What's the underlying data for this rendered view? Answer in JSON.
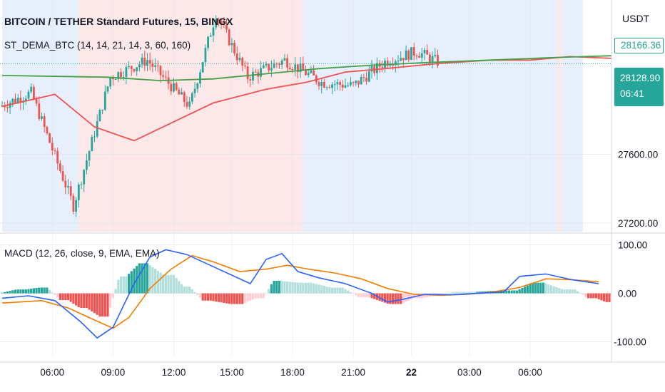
{
  "header": {
    "title": "BITCOIN / TETHER Standard Futures, 15, BINGX",
    "indicator": "ST_DEMA_BTC (14, 14, 21, 14, 3, 60, 160)",
    "macd_label": "MACD (12, 26, close, 9, EMA, EMA)"
  },
  "price_scale": {
    "currency": "USDT",
    "tick_labels": [
      "27600.00",
      "27200.00"
    ],
    "tick_values": [
      27600,
      27200
    ],
    "badge_green_value": "28166.36",
    "badge_price": "28128.90",
    "badge_countdown": "06:41"
  },
  "macd_scale": {
    "tick_labels": [
      "100.00",
      "0.00",
      "-100.00"
    ],
    "tick_values": [
      100,
      0,
      -100
    ]
  },
  "time_axis": {
    "labels": [
      "06:00",
      "09:00",
      "12:00",
      "15:00",
      "18:00",
      "21:00",
      "22",
      "03:00",
      "06:00"
    ],
    "bold_index": 6
  },
  "colors": {
    "up": "#26a69a",
    "down": "#ef5350",
    "background_blue": "#e7effd",
    "background_pink": "#fde8e9",
    "dema_fast": "#ef5350",
    "dema_slow": "#43a047",
    "macd_line": "#2962ff",
    "signal_line": "#f57c00",
    "hist_up_strong": "#26a69a",
    "hist_up_weak": "#b2dfdb",
    "hist_down_strong": "#ef5350",
    "hist_down_weak": "#ffcdd2"
  },
  "chart_data": {
    "type": "candlestick",
    "title": "BITCOIN / TETHER Standard Futures, 15, BINGX",
    "interval": "15",
    "ylim": [
      27150,
      28500
    ],
    "price_last": 28128.9,
    "price_reference": 28166.36,
    "ohlc_segments": [
      {
        "bars": 12,
        "start": 27880,
        "end": 27960
      },
      {
        "bars": 16,
        "start": 27960,
        "end": 27300
      },
      {
        "bars": 14,
        "start": 27300,
        "end": 28050
      },
      {
        "bars": 14,
        "start": 28050,
        "end": 28150
      },
      {
        "bars": 16,
        "start": 28150,
        "end": 27880
      },
      {
        "bars": 10,
        "start": 27880,
        "end": 28420
      },
      {
        "bars": 12,
        "start": 28420,
        "end": 28050
      },
      {
        "bars": 14,
        "start": 28050,
        "end": 28150
      },
      {
        "bars": 14,
        "start": 28150,
        "end": 28020
      },
      {
        "bars": 12,
        "start": 28020,
        "end": 28000
      },
      {
        "bars": 12,
        "start": 28000,
        "end": 28140
      },
      {
        "bars": 12,
        "start": 28140,
        "end": 28200
      },
      {
        "bars": 8,
        "start": 28200,
        "end": 28140
      }
    ],
    "series": [
      {
        "name": "DEMA fast",
        "color": "#ef5350",
        "points": [
          [
            0,
            27880
          ],
          [
            20,
            27950
          ],
          [
            35,
            27760
          ],
          [
            50,
            27680
          ],
          [
            65,
            27790
          ],
          [
            80,
            27900
          ],
          [
            100,
            27980
          ],
          [
            115,
            28020
          ],
          [
            130,
            28080
          ],
          [
            145,
            28100
          ],
          [
            165,
            28130
          ],
          [
            185,
            28150
          ],
          [
            200,
            28150
          ],
          [
            215,
            28170
          ],
          [
            232,
            28160
          ]
        ]
      },
      {
        "name": "DEMA slow",
        "color": "#43a047",
        "points": [
          [
            0,
            28060
          ],
          [
            40,
            28050
          ],
          [
            60,
            28030
          ],
          [
            80,
            28040
          ],
          [
            100,
            28070
          ],
          [
            120,
            28100
          ],
          [
            140,
            28120
          ],
          [
            160,
            28135
          ],
          [
            185,
            28150
          ],
          [
            210,
            28165
          ],
          [
            232,
            28175
          ]
        ]
      }
    ],
    "macd": {
      "macd_line": [
        [
          0,
          -10
        ],
        [
          10,
          -5
        ],
        [
          20,
          -15
        ],
        [
          30,
          -60
        ],
        [
          36,
          -92
        ],
        [
          42,
          -70
        ],
        [
          50,
          20
        ],
        [
          56,
          75
        ],
        [
          62,
          90
        ],
        [
          70,
          80
        ],
        [
          78,
          60
        ],
        [
          86,
          40
        ],
        [
          94,
          20
        ],
        [
          100,
          70
        ],
        [
          106,
          82
        ],
        [
          112,
          45
        ],
        [
          120,
          32
        ],
        [
          130,
          20
        ],
        [
          140,
          0
        ],
        [
          146,
          -18
        ],
        [
          152,
          -12
        ],
        [
          160,
          -2
        ],
        [
          170,
          -3
        ],
        [
          180,
          0
        ],
        [
          190,
          3
        ],
        [
          196,
          35
        ],
        [
          206,
          40
        ],
        [
          216,
          28
        ],
        [
          226,
          20
        ]
      ],
      "signal_line": [
        [
          0,
          -20
        ],
        [
          15,
          -15
        ],
        [
          25,
          -30
        ],
        [
          35,
          -55
        ],
        [
          42,
          -72
        ],
        [
          48,
          -50
        ],
        [
          56,
          10
        ],
        [
          64,
          50
        ],
        [
          72,
          78
        ],
        [
          80,
          65
        ],
        [
          90,
          45
        ],
        [
          100,
          50
        ],
        [
          108,
          58
        ],
        [
          116,
          50
        ],
        [
          126,
          42
        ],
        [
          136,
          30
        ],
        [
          146,
          10
        ],
        [
          156,
          -2
        ],
        [
          166,
          -4
        ],
        [
          176,
          -2
        ],
        [
          186,
          3
        ],
        [
          196,
          12
        ],
        [
          206,
          30
        ],
        [
          216,
          28
        ],
        [
          226,
          24
        ]
      ],
      "histogram_ranges": [
        {
          "from": 0,
          "to": 10,
          "value": 8
        },
        {
          "from": 10,
          "to": 18,
          "value": 12
        },
        {
          "from": 18,
          "to": 26,
          "value": -14
        },
        {
          "from": 26,
          "to": 33,
          "value": -30
        },
        {
          "from": 33,
          "to": 41,
          "value": -48
        },
        {
          "from": 41,
          "to": 48,
          "value": 35
        },
        {
          "from": 48,
          "to": 56,
          "value": 62
        },
        {
          "from": 56,
          "to": 66,
          "value": 38
        },
        {
          "from": 66,
          "to": 72,
          "value": 14
        },
        {
          "from": 72,
          "to": 80,
          "value": -15
        },
        {
          "from": 80,
          "to": 92,
          "value": -22
        },
        {
          "from": 92,
          "to": 100,
          "value": -10
        },
        {
          "from": 100,
          "to": 106,
          "value": 26
        },
        {
          "from": 106,
          "to": 118,
          "value": 22
        },
        {
          "from": 118,
          "to": 130,
          "value": 12
        },
        {
          "from": 130,
          "to": 140,
          "value": -8
        },
        {
          "from": 140,
          "to": 152,
          "value": -22
        },
        {
          "from": 152,
          "to": 160,
          "value": -10
        },
        {
          "from": 160,
          "to": 180,
          "value": 3
        },
        {
          "from": 180,
          "to": 196,
          "value": 6
        },
        {
          "from": 196,
          "to": 206,
          "value": 22
        },
        {
          "from": 206,
          "to": 218,
          "value": 8
        },
        {
          "from": 218,
          "to": 226,
          "value": -10
        },
        {
          "from": 226,
          "to": 232,
          "value": -18
        }
      ],
      "ylim": [
        -130,
        120
      ]
    },
    "background_regions": [
      {
        "from": 0,
        "to": 29,
        "color": "blue"
      },
      {
        "from": 29,
        "to": 114,
        "color": "pink"
      },
      {
        "from": 114,
        "to": 210,
        "color": "blue"
      },
      {
        "from": 210,
        "to": 212,
        "color": "pink"
      },
      {
        "from": 212,
        "to": 220,
        "color": "blue"
      }
    ],
    "time_labels": [
      "06:00",
      "09:00",
      "12:00",
      "15:00",
      "18:00",
      "21:00",
      "22",
      "03:00",
      "06:00"
    ],
    "time_label_bars": [
      19,
      42,
      65,
      87,
      110,
      133,
      155,
      177,
      200
    ]
  }
}
